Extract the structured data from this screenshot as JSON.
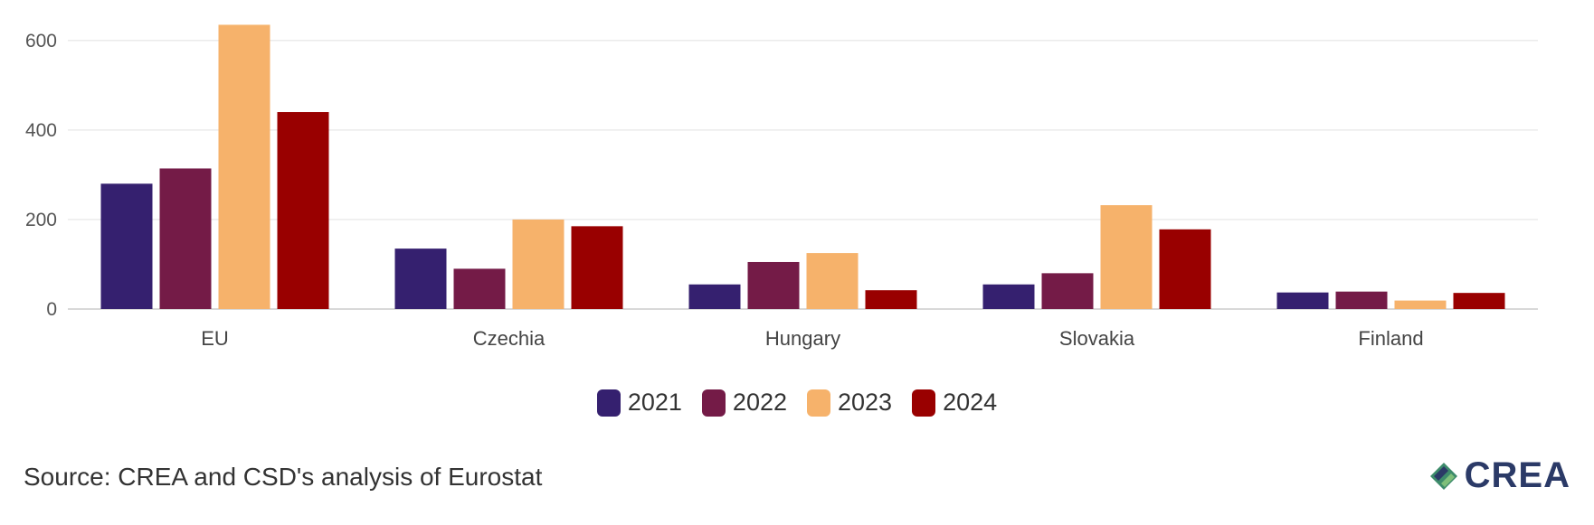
{
  "chart_data": {
    "type": "bar",
    "categories": [
      "EU",
      "Czechia",
      "Hungary",
      "Slovakia",
      "Finland"
    ],
    "series": [
      {
        "name": "2021",
        "color": "#35206f",
        "values": [
          280,
          135,
          55,
          55,
          37
        ]
      },
      {
        "name": "2022",
        "color": "#741b47",
        "values": [
          314,
          90,
          105,
          80,
          39
        ]
      },
      {
        "name": "2023",
        "color": "#f6b26b",
        "values": [
          635,
          200,
          125,
          232,
          19
        ]
      },
      {
        "name": "2024",
        "color": "#990000",
        "values": [
          440,
          185,
          42,
          178,
          36
        ]
      }
    ],
    "yticks": [
      0,
      200,
      400,
      600
    ],
    "ylim": [
      0,
      650
    ],
    "grid": true,
    "legend_position": "bottom-center"
  },
  "footer": {
    "source": "Source: CREA and CSD's analysis of Eurostat",
    "logo_text": "CREA"
  }
}
